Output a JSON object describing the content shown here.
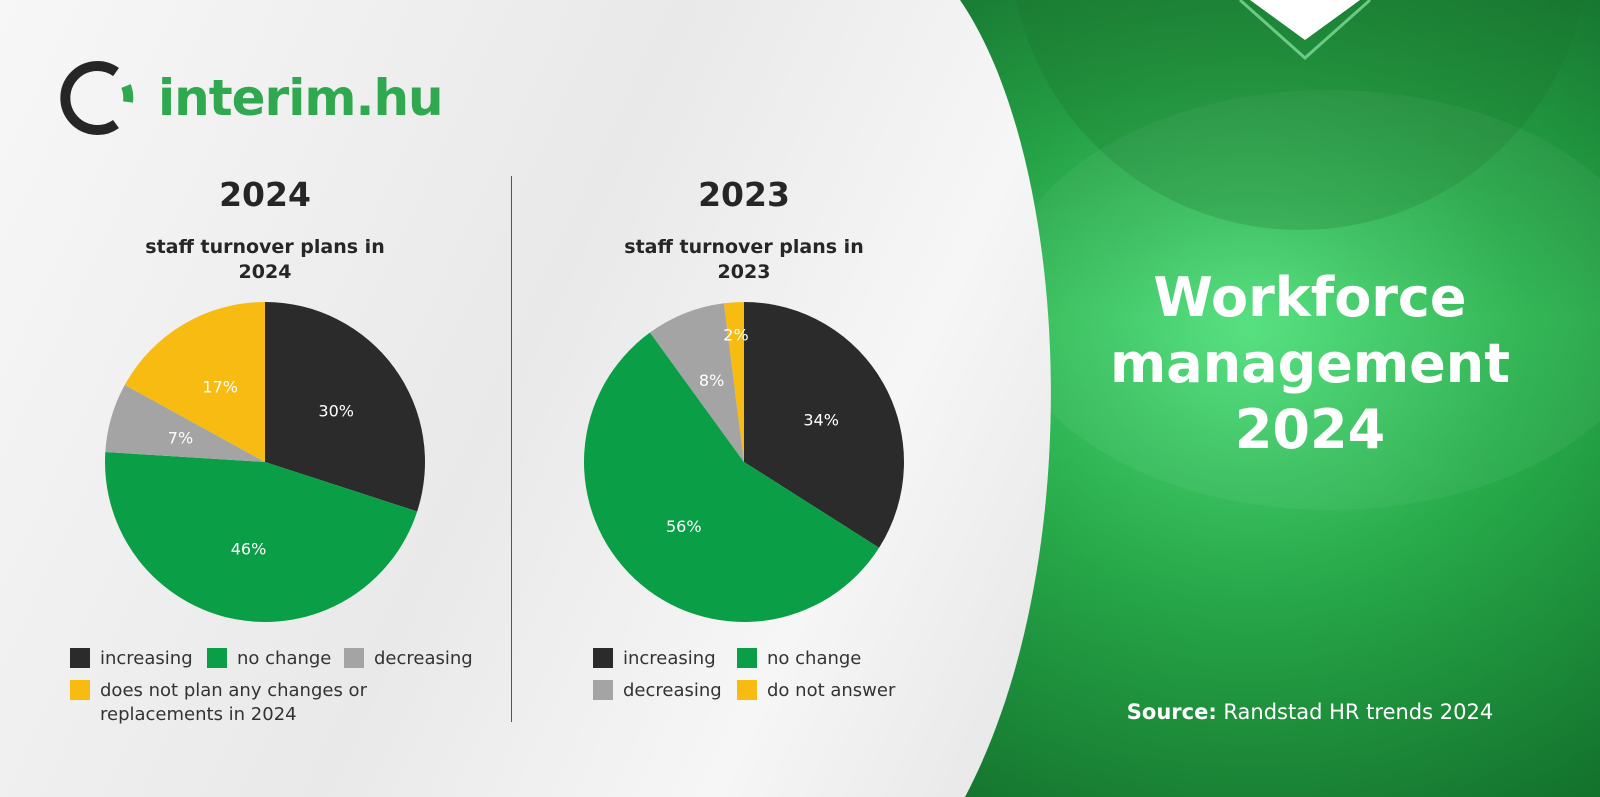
{
  "brand": {
    "name": "interim.hu",
    "color": "#2fa84f",
    "icon": "ring-logo-icon"
  },
  "headline": {
    "line1": "Workforce",
    "line2": "management",
    "line3": "2024"
  },
  "source": {
    "label": "Source:",
    "text": "Randstad HR trends 2024"
  },
  "colors": {
    "increasing": "#2b2b2b",
    "no_change": "#0a9e46",
    "decreasing": "#a4a4a4",
    "other": "#f7bb12",
    "accent_green": "#1e9a3c"
  },
  "chart_data": [
    {
      "type": "pie",
      "heading": "2024",
      "title": "staff turnover plans in 2024",
      "slices": [
        {
          "label": "increasing",
          "value": 30,
          "display": "30%",
          "color": "#2b2b2b"
        },
        {
          "label": "no change",
          "value": 46,
          "display": "46%",
          "color": "#0a9e46"
        },
        {
          "label": "decreasing",
          "value": 7,
          "display": "7%",
          "color": "#a4a4a4"
        },
        {
          "label": "does not plan any changes or replacements in 2024",
          "value": 17,
          "display": "17%",
          "color": "#f7bb12"
        }
      ],
      "legend": {
        "increasing": "increasing",
        "no_change": "no change",
        "decreasing": "decreasing",
        "other_line1": "does not plan any changes or",
        "other_line2": "replacements in 2024"
      },
      "legend_position": "bottom"
    },
    {
      "type": "pie",
      "heading": "2023",
      "title": "staff turnover plans in 2023",
      "slices": [
        {
          "label": "increasing",
          "value": 34,
          "display": "34%",
          "color": "#2b2b2b"
        },
        {
          "label": "no change",
          "value": 56,
          "display": "56%",
          "color": "#0a9e46"
        },
        {
          "label": "decreasing",
          "value": 8,
          "display": "8%",
          "color": "#a4a4a4"
        },
        {
          "label": "do not answer",
          "value": 2,
          "display": "2%",
          "color": "#f7bb12"
        }
      ],
      "legend": {
        "increasing": "increasing",
        "no_change": "no change",
        "decreasing": "decreasing",
        "other": "do not answer"
      },
      "legend_position": "bottom"
    }
  ]
}
